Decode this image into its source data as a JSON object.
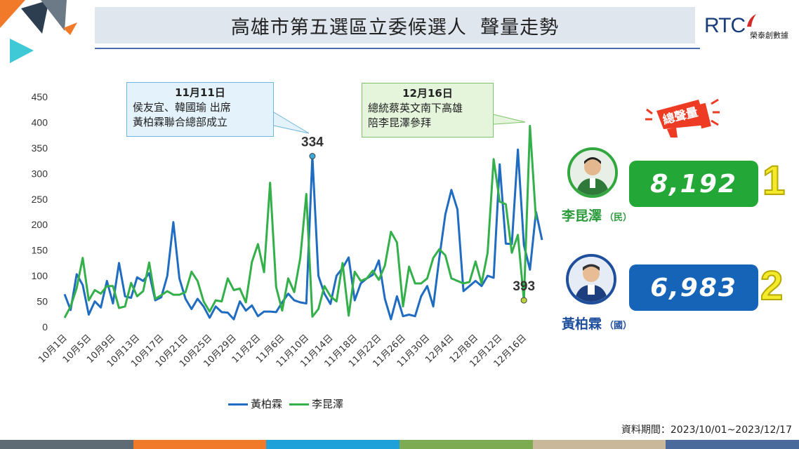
{
  "header": {
    "title": "高雄市第五選區立委候選人  聲量走勢",
    "logo_text": "RTC",
    "logo_subtext": "榮泰創數據"
  },
  "callouts": [
    {
      "date": "11月11日",
      "lines": [
        "侯友宜、韓國瑜 出席",
        "黃柏霖聯合總部成立"
      ]
    },
    {
      "date": "12月16日",
      "lines": [
        "總統蔡英文南下高雄",
        "陪李昆澤參拜"
      ]
    }
  ],
  "total_label": "總聲量",
  "candidates": [
    {
      "name": "李昆澤",
      "party": "（民）",
      "score": "8,192",
      "rank": "1",
      "color": "#23a838"
    },
    {
      "name": "黃柏霖",
      "party": "（國）",
      "score": "6,983",
      "rank": "2",
      "color": "#1564b8"
    }
  ],
  "period": "資料期間：2023/10/01~2023/12/17",
  "icons": [
    "megaphone-icon",
    "avatar-lee-icon",
    "avatar-huang-icon",
    "logo-mark-icon"
  ],
  "colors": {
    "huang": "#1f6cc0",
    "lee": "#33b04a",
    "strip": [
      "#5f6b74",
      "#f07a2a",
      "#1ea0d8",
      "#7cab52",
      "#c9b99a",
      "#4a6a9c"
    ]
  },
  "chart_data": {
    "type": "line",
    "title": "",
    "xlabel": "",
    "ylabel": "",
    "ylim": [
      0,
      450
    ],
    "yticks": [
      0,
      50,
      100,
      150,
      200,
      250,
      300,
      350,
      400,
      450
    ],
    "grid": false,
    "legend": "bottom",
    "x_tick_labels": [
      "10月1日",
      "10月5日",
      "10月9日",
      "10月13日",
      "10月17日",
      "10月21日",
      "10月25日",
      "10月29日",
      "11月2日",
      "11月6日",
      "11月10日",
      "11月14日",
      "11月18日",
      "11月22日",
      "11月26日",
      "11月30日",
      "12月4日",
      "12月8日",
      "12月12日",
      "12月16日"
    ],
    "x_tick_interval_days": 4,
    "x_start": "2023-10-01",
    "x_end": "2023-12-17",
    "peak_labels": [
      {
        "series": "黃柏霖",
        "date": "11月11日",
        "value": "334"
      },
      {
        "series": "李昆澤",
        "date": "12月16日",
        "value": "393"
      }
    ],
    "series": [
      {
        "name": "黃柏霖",
        "color": "#1f6cc0",
        "values": [
          64,
          33,
          103,
          82,
          24,
          50,
          38,
          90,
          46,
          125,
          60,
          57,
          97,
          90,
          105,
          52,
          58,
          100,
          205,
          95,
          55,
          35,
          55,
          40,
          18,
          40,
          29,
          28,
          15,
          50,
          32,
          42,
          21,
          30,
          30,
          29,
          48,
          65,
          52,
          48,
          46,
          334,
          100,
          65,
          45,
          100,
          115,
          136,
          52,
          85,
          95,
          102,
          130,
          55,
          15,
          60,
          21,
          24,
          21,
          60,
          80,
          40,
          135,
          220,
          268,
          230,
          70,
          80,
          90,
          80,
          100,
          96,
          318,
          163,
          162,
          347,
          160,
          112,
          225,
          170
        ]
      },
      {
        "name": "李昆澤",
        "color": "#33b04a",
        "values": [
          18,
          40,
          76,
          135,
          52,
          72,
          65,
          80,
          80,
          37,
          40,
          86,
          60,
          70,
          126,
          55,
          62,
          70,
          63,
          63,
          68,
          108,
          90,
          50,
          30,
          52,
          50,
          95,
          72,
          75,
          48,
          127,
          162,
          107,
          282,
          78,
          32,
          95,
          68,
          135,
          260,
          20,
          35,
          80,
          60,
          50,
          125,
          22,
          108,
          90,
          95,
          110,
          92,
          120,
          186,
          165,
          40,
          118,
          85,
          85,
          95,
          135,
          152,
          140,
          95,
          90,
          85,
          88,
          128,
          85,
          145,
          328,
          245,
          240,
          145,
          180,
          52,
          393,
          210
        ]
      }
    ]
  }
}
